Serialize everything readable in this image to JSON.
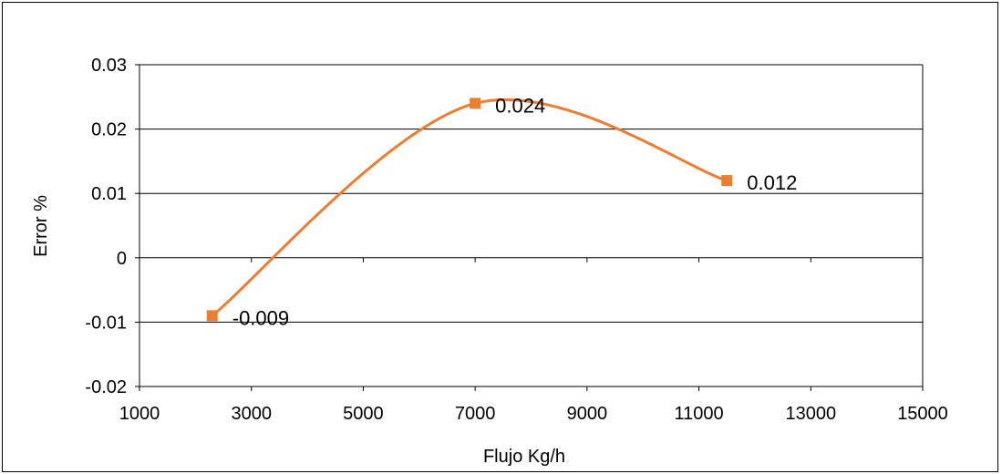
{
  "chart_data": {
    "type": "scatter",
    "title": "",
    "xlabel": "Flujo Kg/h",
    "ylabel": "Error  %",
    "xlim": [
      1000,
      15000
    ],
    "ylim": [
      -0.02,
      0.03
    ],
    "x_ticks": [
      "1000",
      "3000",
      "5000",
      "7000",
      "9000",
      "11000",
      "13000",
      "15000"
    ],
    "y_ticks": [
      "0.03",
      "0.02",
      "0.01",
      "0",
      "-0.01",
      "-0.02"
    ],
    "grid": "horizontal",
    "legend": "none",
    "line_style": "smoothed",
    "series": [
      {
        "color": "#ed7d31",
        "marker": "square",
        "points": [
          {
            "x": 2300,
            "y": -0.009,
            "label": "-0.009"
          },
          {
            "x": 7000,
            "y": 0.024,
            "label": "0.024"
          },
          {
            "x": 11500,
            "y": 0.012,
            "label": "0.012"
          }
        ]
      }
    ]
  }
}
